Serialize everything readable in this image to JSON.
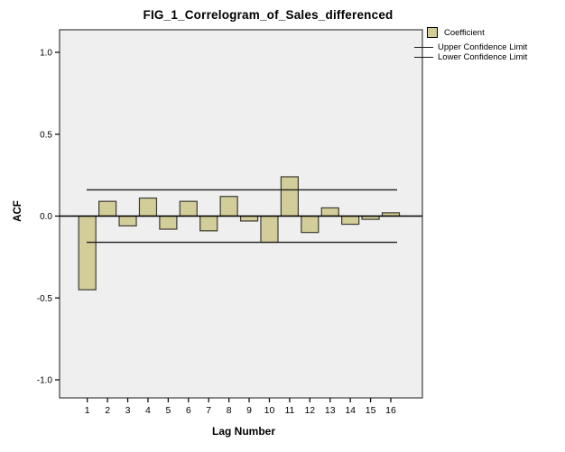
{
  "chart_data": {
    "type": "bar",
    "title": "FIG_1_Correlogram_of_Sales_differenced",
    "xlabel": "Lag Number",
    "ylabel": "ACF",
    "categories": [
      1,
      2,
      3,
      4,
      5,
      6,
      7,
      8,
      9,
      10,
      11,
      12,
      13,
      14,
      15,
      16
    ],
    "values": [
      -0.45,
      0.09,
      -0.06,
      0.11,
      -0.08,
      0.09,
      -0.09,
      0.12,
      -0.03,
      -0.16,
      0.24,
      -0.1,
      0.05,
      -0.05,
      -0.02,
      0.02
    ],
    "upper_confidence_limit": 0.16,
    "lower_confidence_limit": -0.16,
    "ylim": [
      -1.0,
      1.0
    ],
    "yticks": [
      1.0,
      0.5,
      0.0,
      -0.5,
      -1.0
    ],
    "ytick_labels": [
      "1.0",
      "0.5",
      "0.0",
      "-0.5",
      "-1.0"
    ],
    "grid": false,
    "legend": {
      "position": "top-right",
      "entries": [
        {
          "label": "Coefficient",
          "marker": "swatch"
        },
        {
          "label": "Upper Confidence Limit",
          "marker": "line"
        },
        {
          "label": "Lower Confidence Limit",
          "marker": "line"
        }
      ]
    },
    "colors": {
      "bar_fill": "#d3cd9a",
      "bar_stroke": "#3c3c32",
      "plot_background": "#efefef",
      "frame_stroke": "#4c4c4c",
      "zero_line": "#000000",
      "confidence_line": "#1e1e1e",
      "text": "#000000"
    }
  }
}
